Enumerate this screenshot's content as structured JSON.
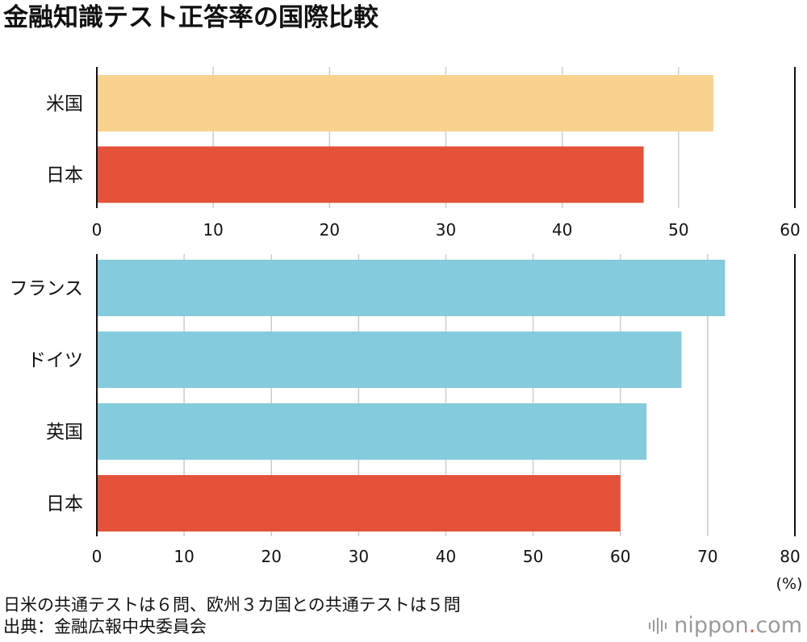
{
  "title": "金融知識テスト正答率の国際比較",
  "chart_data": [
    {
      "type": "bar",
      "orientation": "horizontal",
      "categories": [
        "米国",
        "日本"
      ],
      "values": [
        53,
        47
      ],
      "colors": [
        "#f8d28e",
        "#e4523a"
      ],
      "xlim": [
        0,
        60
      ],
      "ticks": [
        0,
        10,
        20,
        30,
        40,
        50,
        60
      ],
      "grid": true
    },
    {
      "type": "bar",
      "orientation": "horizontal",
      "categories": [
        "フランス",
        "ドイツ",
        "英国",
        "日本"
      ],
      "values": [
        72,
        67,
        63,
        60
      ],
      "colors": [
        "#84cbdc",
        "#84cbdc",
        "#84cbdc",
        "#e4523a"
      ],
      "xlim": [
        0,
        80
      ],
      "ticks": [
        0,
        10,
        20,
        30,
        40,
        50,
        60,
        70,
        80
      ],
      "grid": true,
      "unit": "(%)"
    }
  ],
  "notes": {
    "line1": "日米の共通テストは６問、欧州３カ国との共通テストは５問",
    "line2": "出典：金融広報中央委員会"
  },
  "logo": {
    "icon": "sound-wave-icon",
    "name": "nippon",
    "dot": ".",
    "tld": "com"
  },
  "colors": {
    "grid": "#cccccc",
    "axis": "#111111"
  }
}
